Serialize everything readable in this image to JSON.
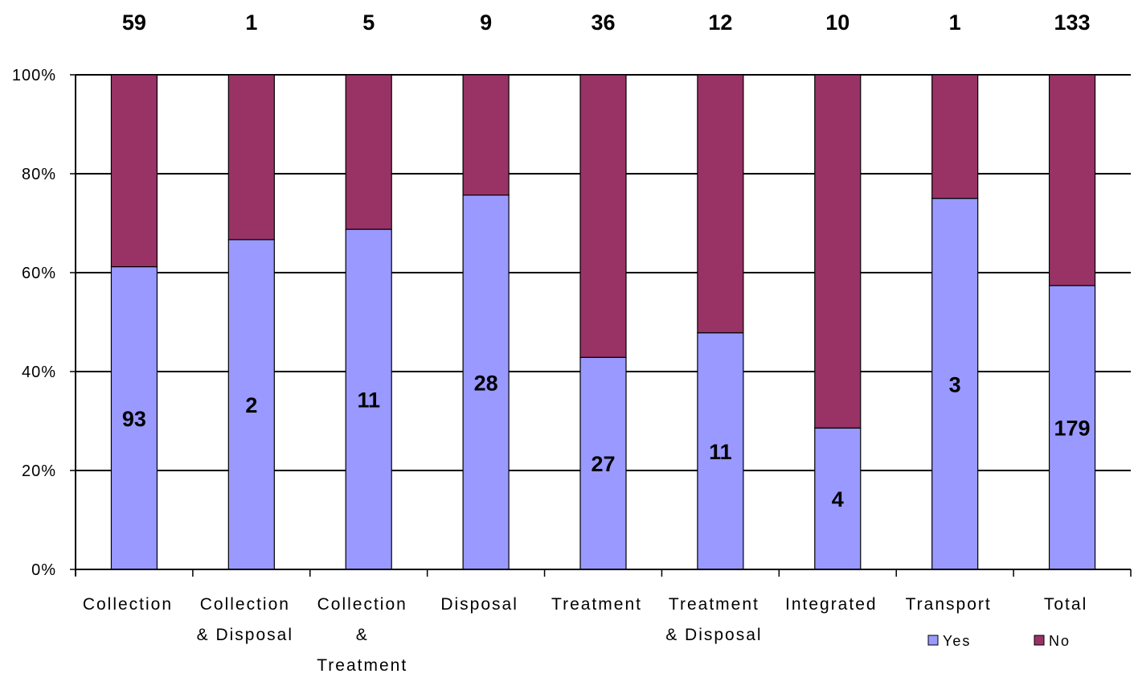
{
  "chart_data": {
    "type": "bar",
    "stacked": true,
    "normalized": true,
    "categories": [
      [
        "Collection"
      ],
      [
        "Collection",
        "& Disposal"
      ],
      [
        "Collection",
        "&",
        "Treatment"
      ],
      [
        "Disposal"
      ],
      [
        "Treatment"
      ],
      [
        "Treatment",
        "& Disposal"
      ],
      [
        "Integrated"
      ],
      [
        "Transport"
      ],
      [
        "Total"
      ]
    ],
    "series": [
      {
        "name": "Yes",
        "color": "#9999ff",
        "values": [
          93,
          2,
          11,
          28,
          27,
          11,
          4,
          3,
          179
        ]
      },
      {
        "name": "No",
        "color": "#993366",
        "values": [
          59,
          1,
          5,
          9,
          36,
          12,
          10,
          1,
          133
        ]
      }
    ],
    "top_labels": [
      "59",
      "1",
      "5",
      "9",
      "36",
      "12",
      "10",
      "1",
      "133"
    ],
    "bar_labels": [
      "93",
      "2",
      "11",
      "28",
      "27",
      "11",
      "4",
      "3",
      "179"
    ],
    "yticks": [
      "0%",
      "20%",
      "40%",
      "60%",
      "80%",
      "100%"
    ],
    "ylim": [
      0,
      100
    ],
    "grid": true,
    "legend": "bottom-right",
    "title": "",
    "xlabel": "",
    "ylabel": ""
  }
}
